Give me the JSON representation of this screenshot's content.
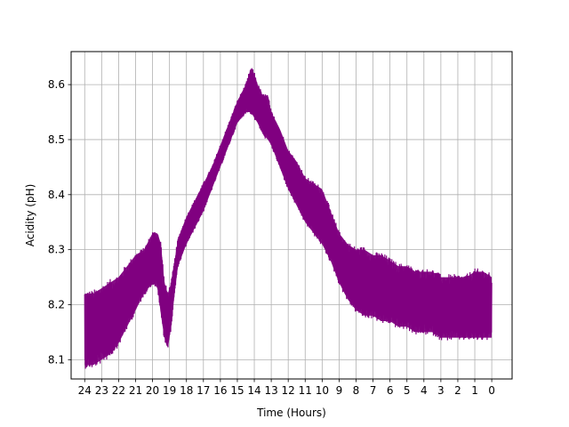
{
  "chart_data": {
    "type": "line",
    "xlabel": "Time (Hours)",
    "ylabel": "Acidity (pH)",
    "x_inverted": true,
    "xlim": [
      24.8,
      -1.2
    ],
    "ylim": [
      8.065,
      8.66
    ],
    "xticks": [
      24,
      23,
      22,
      21,
      20,
      19,
      18,
      17,
      16,
      15,
      14,
      13,
      12,
      11,
      10,
      9,
      8,
      7,
      6,
      5,
      4,
      3,
      2,
      1,
      0
    ],
    "yticks": [
      8.1,
      8.2,
      8.3,
      8.4,
      8.5,
      8.6
    ],
    "ytick_labels": [
      "8.1",
      "8.2",
      "8.3",
      "8.4",
      "8.5",
      "8.6"
    ],
    "grid": true,
    "series": [
      {
        "color": "#800080",
        "envelope": {
          "x": [
            24,
            23.5,
            23,
            22.5,
            22,
            21.5,
            21,
            20.5,
            20,
            19.7,
            19.5,
            19.3,
            19.1,
            18.9,
            18.7,
            18.5,
            18,
            17.5,
            17,
            16.5,
            16,
            15.5,
            15,
            14.5,
            14.2,
            14,
            13.8,
            13.5,
            13.2,
            13,
            12.5,
            12,
            11.5,
            11,
            10.5,
            10,
            9.5,
            9,
            8.5,
            8,
            7.5,
            7,
            6.5,
            6,
            5.5,
            5,
            4.5,
            4,
            3.5,
            3,
            2.5,
            2,
            1.5,
            1,
            0.5,
            0
          ],
          "upper": [
            8.22,
            8.22,
            8.23,
            8.24,
            8.25,
            8.27,
            8.29,
            8.3,
            8.33,
            8.33,
            8.31,
            8.24,
            8.22,
            8.24,
            8.28,
            8.32,
            8.36,
            8.39,
            8.42,
            8.45,
            8.49,
            8.53,
            8.57,
            8.6,
            8.63,
            8.62,
            8.6,
            8.58,
            8.58,
            8.55,
            8.52,
            8.48,
            8.46,
            8.43,
            8.42,
            8.41,
            8.37,
            8.33,
            8.31,
            8.3,
            8.3,
            8.29,
            8.29,
            8.28,
            8.27,
            8.27,
            8.26,
            8.26,
            8.26,
            8.25,
            8.25,
            8.25,
            8.25,
            8.26,
            8.26,
            8.25
          ],
          "lower": [
            8.09,
            8.09,
            8.1,
            8.11,
            8.13,
            8.16,
            8.19,
            8.22,
            8.24,
            8.23,
            8.18,
            8.14,
            8.12,
            8.16,
            8.22,
            8.27,
            8.31,
            8.34,
            8.37,
            8.41,
            8.45,
            8.49,
            8.53,
            8.55,
            8.55,
            8.54,
            8.53,
            8.51,
            8.5,
            8.49,
            8.45,
            8.41,
            8.38,
            8.35,
            8.33,
            8.31,
            8.28,
            8.24,
            8.21,
            8.19,
            8.18,
            8.18,
            8.17,
            8.17,
            8.16,
            8.16,
            8.15,
            8.15,
            8.15,
            8.14,
            8.14,
            8.14,
            8.14,
            8.14,
            8.14,
            8.14
          ]
        }
      }
    ]
  }
}
